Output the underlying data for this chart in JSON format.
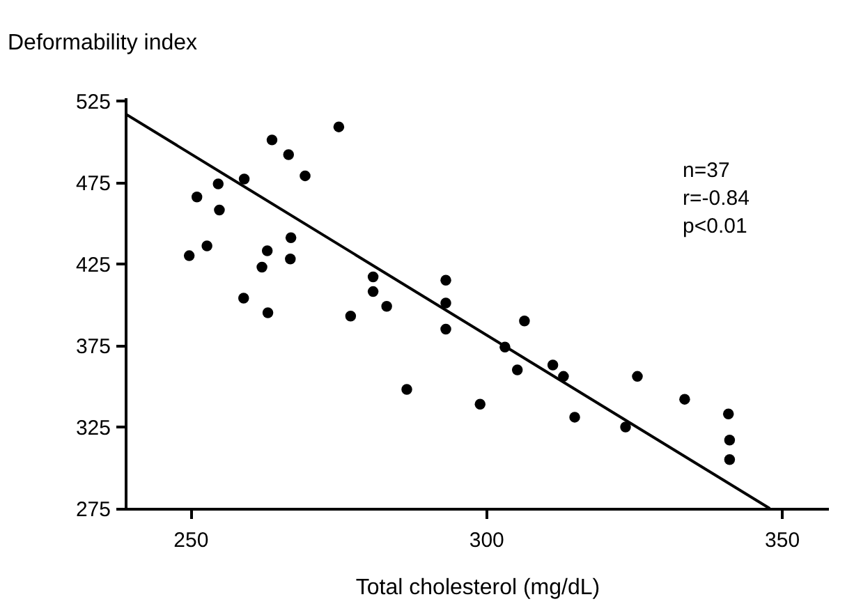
{
  "chart_data": {
    "type": "scatter",
    "xlabel": "Total cholesterol (mg/dL)",
    "ylabel": "Deformability index",
    "xlim": [
      239,
      358
    ],
    "ylim": [
      275,
      527
    ],
    "xticks": [
      250,
      300,
      350
    ],
    "yticks": [
      275,
      325,
      375,
      425,
      475,
      525
    ],
    "grid": false,
    "marker": "circle",
    "annotations": [
      "n=37",
      "r=-0.84",
      "p<0.01"
    ],
    "series": [
      {
        "color": "#000000",
        "x": [
          275.1,
          263.8,
          266.6,
          269.4,
          259.1,
          254.7,
          251.1,
          254.9,
          267.0,
          252.8,
          263.0,
          249.8,
          266.9,
          262.1,
          280.9,
          293.2,
          280.9,
          259.0,
          283.2,
          293.2,
          263.1,
          277.1,
          293.2,
          286.6,
          299.0,
          306.5,
          303.2,
          311.3,
          305.3,
          313.1,
          325.6,
          333.6,
          315.0,
          323.6,
          341.0,
          341.2,
          341.2
        ],
        "values": [
          509,
          501,
          492,
          479,
          477,
          474,
          466,
          458,
          441,
          436,
          433,
          430,
          428,
          423,
          417,
          415,
          408,
          404,
          399,
          401,
          395,
          393,
          385,
          348,
          339,
          390,
          374,
          363,
          360,
          356,
          356,
          342,
          331,
          325,
          333,
          317,
          305
        ]
      },
      {
        "type": "line",
        "color": "#000000",
        "line_style": "solid",
        "marker": "none",
        "x": [
          239,
          348
        ],
        "values": [
          517,
          275
        ]
      }
    ]
  }
}
